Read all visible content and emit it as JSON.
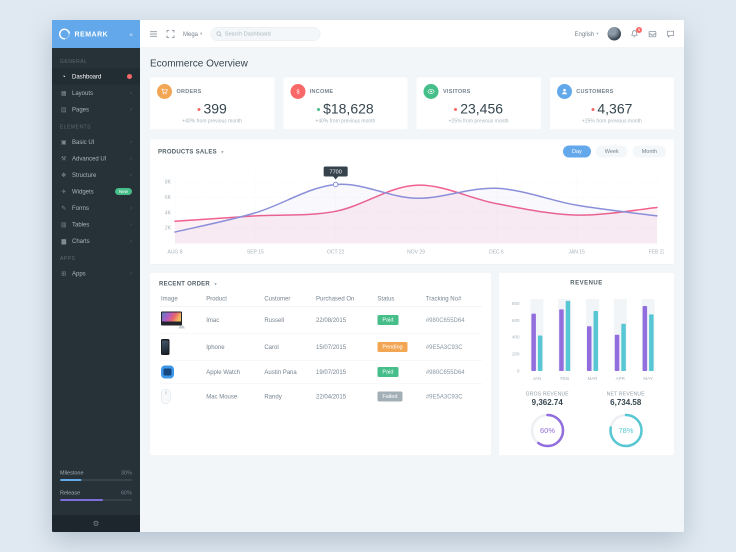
{
  "sidebar": {
    "logo": "REMARK",
    "sections": [
      {
        "title": "GENERAL",
        "items": [
          {
            "label": "Dashboard",
            "icon": "dashboard",
            "active": true,
            "dot": true
          },
          {
            "label": "Layouts",
            "icon": "layouts",
            "chevron": true
          },
          {
            "label": "Pages",
            "icon": "pages",
            "chevron": true
          }
        ]
      },
      {
        "title": "Elements",
        "items": [
          {
            "label": "Basic UI",
            "icon": "basic-ui",
            "chevron": true
          },
          {
            "label": "Advanced UI",
            "icon": "advanced-ui",
            "chevron": true
          },
          {
            "label": "Structure",
            "icon": "structure",
            "chevron": true
          },
          {
            "label": "Widgets",
            "icon": "widgets",
            "badge": "New"
          },
          {
            "label": "Forms",
            "icon": "forms",
            "chevron": true
          },
          {
            "label": "Tables",
            "icon": "tables",
            "chevron": true
          },
          {
            "label": "Charts",
            "icon": "charts",
            "chevron": true
          }
        ]
      },
      {
        "title": "APPS",
        "items": [
          {
            "label": "Apps",
            "icon": "apps",
            "chevron": true
          }
        ]
      }
    ],
    "progress": [
      {
        "label": "Milestone",
        "value": "30%",
        "pct": 30,
        "color": "#62a8ea"
      },
      {
        "label": "Release",
        "value": "60%",
        "pct": 60,
        "color": "#7c6fd9"
      }
    ]
  },
  "navbar": {
    "menu_label": "Mega",
    "search_placeholder": "Search Dashboard",
    "language": "English",
    "notification_count": "5"
  },
  "page": {
    "title": "Ecommerce Overview"
  },
  "stats": [
    {
      "label": "ORDERS",
      "value": "399",
      "delta": "+40% from previous month",
      "icon": "cart",
      "icon_color": "#f2a654",
      "trend_color": "#f96868"
    },
    {
      "label": "INCOME",
      "value": "$18,628",
      "delta": "+40% from previous month",
      "icon": "dollar",
      "icon_color": "#f96868",
      "trend_color": "#46be8a"
    },
    {
      "label": "VISITORS",
      "value": "23,456",
      "delta": "+25% from previous month",
      "icon": "eye",
      "icon_color": "#46be8a",
      "trend_color": "#f96868"
    },
    {
      "label": "CUSTOMERS",
      "value": "4,367",
      "delta": "+25% from previous month",
      "icon": "user",
      "icon_color": "#62a8ea",
      "trend_color": "#f96868"
    }
  ],
  "products_sales": {
    "title": "PRODUCTS SALES",
    "ranges": [
      {
        "label": "Day",
        "active": true
      },
      {
        "label": "Week",
        "active": false
      },
      {
        "label": "Month",
        "active": false
      }
    ]
  },
  "recent_orders": {
    "title": "RECENT ORDER",
    "columns": [
      "Image",
      "Product",
      "Customer",
      "Purchased On",
      "Status",
      "Tracking No#"
    ],
    "rows": [
      {
        "image": "imac",
        "product": "Imac",
        "customer": "Russell",
        "purchased": "22/08/2015",
        "status": "Paid",
        "status_color": "#46be8a",
        "tracking": "#980C655D64"
      },
      {
        "image": "iphone",
        "product": "Iphone",
        "customer": "Carol",
        "purchased": "15/07/2015",
        "status": "Pending",
        "status_color": "#f2a654",
        "tracking": "#9E5A3C93C"
      },
      {
        "image": "watch",
        "product": "Apple Watch",
        "customer": "Austin Pana",
        "purchased": "19/07/2015",
        "status": "Paid",
        "status_color": "#46be8a",
        "tracking": "#980C655D64"
      },
      {
        "image": "mouse",
        "product": "Mac Mouse",
        "customer": "Randy",
        "purchased": "22/04/2015",
        "status": "Failed",
        "status_color": "#a3afb7",
        "tracking": "#9E5A3C93C"
      }
    ]
  },
  "revenue_panel": {
    "title": "REVENUE",
    "gros": {
      "label": "GROS REVENUE",
      "value": "9,362.74",
      "percent": "60%"
    },
    "net": {
      "label": "NET REVENUE",
      "value": "6,734.58",
      "percent": "78%"
    }
  },
  "chart_data": [
    {
      "id": "products_sales",
      "type": "line",
      "x": [
        "AUG 8",
        "SEP 15",
        "OCT 22",
        "NOV 29",
        "DEC 6",
        "JAN 15",
        "FEB 22"
      ],
      "ylim": [
        0,
        9000
      ],
      "yticks": [
        {
          "v": 2000,
          "label": "2K"
        },
        {
          "v": 4000,
          "label": "4K"
        },
        {
          "v": 6000,
          "label": "6K"
        },
        {
          "v": 8000,
          "label": "8K"
        }
      ],
      "series": [
        {
          "name": "series-purple",
          "color": "#8b8fd9",
          "fill": "rgba(139,143,217,0.06)",
          "values": [
            1500,
            4000,
            7700,
            5900,
            7200,
            5000,
            3600
          ]
        },
        {
          "name": "series-pink",
          "color": "#f0618e",
          "fill": "rgba(240,97,142,0.09)",
          "values": [
            2900,
            3600,
            4200,
            7600,
            5200,
            3700,
            4700
          ]
        }
      ],
      "tooltip": {
        "series": 0,
        "index": 2,
        "label": "7700"
      },
      "grid": true,
      "legend": "none"
    },
    {
      "id": "revenue",
      "type": "bar",
      "title": "REVENUE",
      "categories": [
        "JAN",
        "FEB",
        "MAR",
        "APR",
        "MAY"
      ],
      "ylim": [
        0,
        900
      ],
      "yticks": [
        0,
        200,
        400,
        600,
        800
      ],
      "series": [
        {
          "name": "series-purple",
          "color": "#926dde",
          "values": [
            680,
            730,
            530,
            430,
            770
          ]
        },
        {
          "name": "series-teal",
          "color": "#57c7d4",
          "values": [
            420,
            830,
            710,
            560,
            670
          ]
        }
      ],
      "grid": false,
      "legend": "none"
    },
    {
      "id": "gros_donut",
      "type": "donut",
      "value": 60,
      "label": "60%",
      "color": "#926dde"
    },
    {
      "id": "net_donut",
      "type": "donut",
      "value": 78,
      "label": "78%",
      "color": "#57c7d4"
    }
  ]
}
